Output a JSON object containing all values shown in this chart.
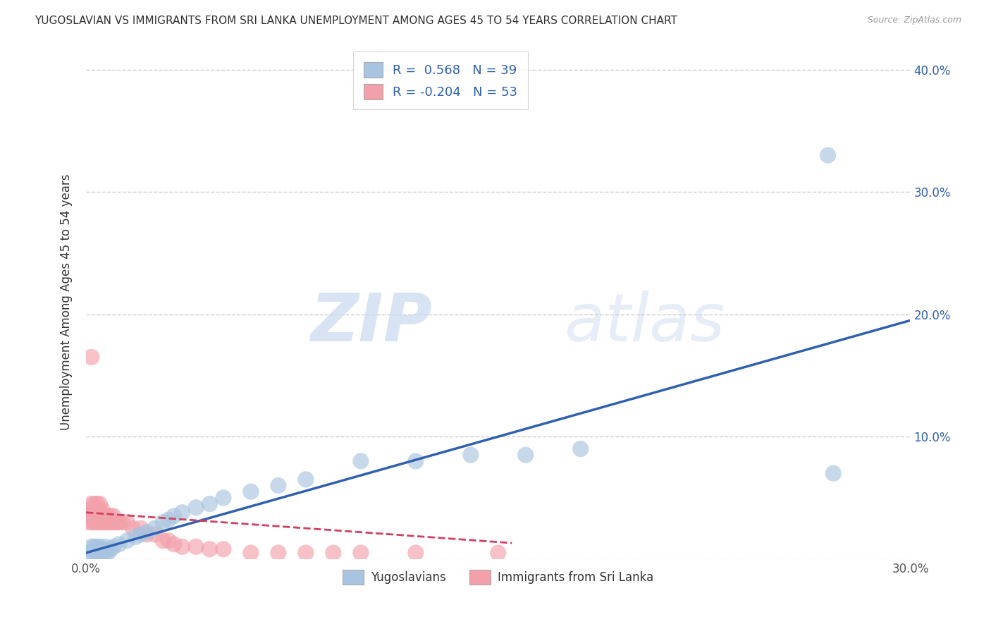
{
  "title": "YUGOSLAVIAN VS IMMIGRANTS FROM SRI LANKA UNEMPLOYMENT AMONG AGES 45 TO 54 YEARS CORRELATION CHART",
  "source": "Source: ZipAtlas.com",
  "ylabel": "Unemployment Among Ages 45 to 54 years",
  "xlim": [
    0.0,
    0.3
  ],
  "ylim": [
    0.0,
    0.42
  ],
  "xticks": [
    0.0,
    0.05,
    0.1,
    0.15,
    0.2,
    0.25,
    0.3
  ],
  "xtick_labels": [
    "0.0%",
    "",
    "",
    "",
    "",
    "",
    "30.0%"
  ],
  "yticks": [
    0.0,
    0.1,
    0.2,
    0.3,
    0.4
  ],
  "ytick_labels_right": [
    "",
    "10.0%",
    "20.0%",
    "30.0%",
    "40.0%"
  ],
  "blue_R": 0.568,
  "blue_N": 39,
  "pink_R": -0.204,
  "pink_N": 53,
  "blue_color": "#a8c4e0",
  "pink_color": "#f2a0aa",
  "blue_line_color": "#3060b0",
  "pink_line_color": "#d04060",
  "watermark_zip": "ZIP",
  "watermark_atlas": "atlas",
  "grid_color": "#cccccc",
  "bg_color": "#ffffff",
  "legend_label_blue": "Yugoslavians",
  "legend_label_pink": "Immigrants from Sri Lanka",
  "blue_scatter_x": [
    0.001,
    0.002,
    0.002,
    0.003,
    0.003,
    0.004,
    0.004,
    0.005,
    0.005,
    0.006,
    0.006,
    0.007,
    0.007,
    0.008,
    0.009,
    0.01,
    0.012,
    0.015,
    0.018,
    0.02,
    0.022,
    0.025,
    0.028,
    0.03,
    0.032,
    0.035,
    0.04,
    0.045,
    0.05,
    0.06,
    0.07,
    0.08,
    0.1,
    0.12,
    0.14,
    0.16,
    0.18,
    0.27,
    0.272
  ],
  "blue_scatter_y": [
    0.005,
    0.005,
    0.01,
    0.005,
    0.01,
    0.005,
    0.01,
    0.005,
    0.01,
    0.005,
    0.008,
    0.005,
    0.01,
    0.005,
    0.008,
    0.01,
    0.012,
    0.015,
    0.018,
    0.02,
    0.022,
    0.025,
    0.03,
    0.032,
    0.035,
    0.038,
    0.042,
    0.045,
    0.05,
    0.055,
    0.06,
    0.065,
    0.08,
    0.08,
    0.085,
    0.085,
    0.09,
    0.33,
    0.07
  ],
  "pink_scatter_x": [
    0.001,
    0.001,
    0.001,
    0.002,
    0.002,
    0.002,
    0.002,
    0.003,
    0.003,
    0.003,
    0.003,
    0.004,
    0.004,
    0.004,
    0.004,
    0.005,
    0.005,
    0.005,
    0.005,
    0.006,
    0.006,
    0.006,
    0.007,
    0.007,
    0.008,
    0.008,
    0.009,
    0.009,
    0.01,
    0.01,
    0.011,
    0.012,
    0.013,
    0.015,
    0.017,
    0.02,
    0.022,
    0.025,
    0.028,
    0.03,
    0.032,
    0.035,
    0.04,
    0.045,
    0.05,
    0.06,
    0.07,
    0.08,
    0.09,
    0.1,
    0.12,
    0.15,
    0.002
  ],
  "pink_scatter_y": [
    0.03,
    0.035,
    0.04,
    0.03,
    0.035,
    0.04,
    0.045,
    0.03,
    0.035,
    0.04,
    0.045,
    0.03,
    0.035,
    0.04,
    0.045,
    0.03,
    0.035,
    0.04,
    0.045,
    0.03,
    0.035,
    0.04,
    0.03,
    0.035,
    0.03,
    0.035,
    0.03,
    0.035,
    0.03,
    0.035,
    0.03,
    0.03,
    0.03,
    0.03,
    0.025,
    0.025,
    0.02,
    0.02,
    0.015,
    0.015,
    0.012,
    0.01,
    0.01,
    0.008,
    0.008,
    0.005,
    0.005,
    0.005,
    0.005,
    0.005,
    0.005,
    0.005,
    0.165
  ],
  "blue_trend_x": [
    0.0,
    0.3
  ],
  "blue_trend_y": [
    0.005,
    0.195
  ],
  "pink_trend_x": [
    0.0,
    0.155
  ],
  "pink_trend_y": [
    0.038,
    0.013
  ]
}
